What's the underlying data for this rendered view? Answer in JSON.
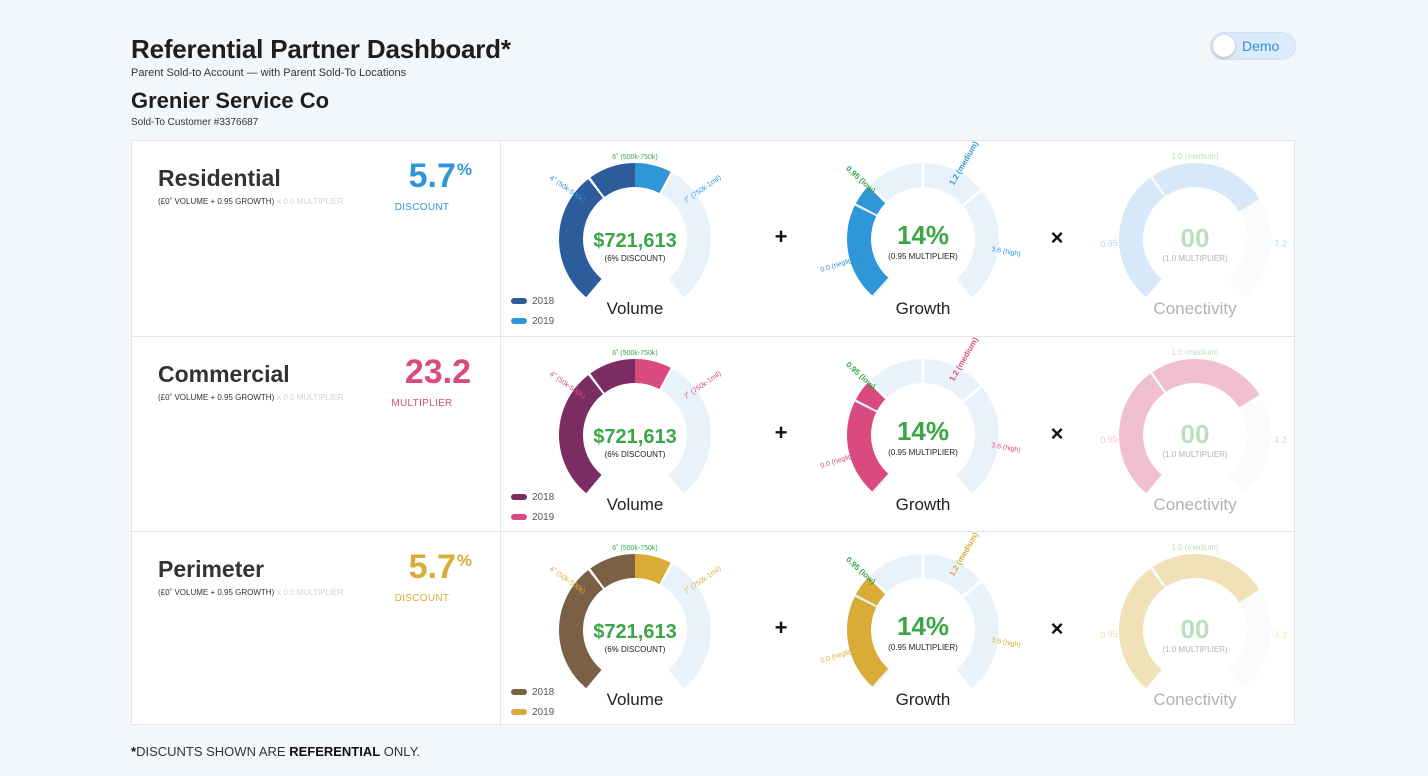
{
  "header": {
    "title": "Referential Partner Dashboard*",
    "subtitle": "Parent Sold-to Account — with Parent Sold-To Locations",
    "company": "Grenier Service Co",
    "customer": "Sold-To Customer #3376687"
  },
  "toggle": {
    "label": "Demo"
  },
  "segments": [
    {
      "name": "Residential",
      "formula": "(£0˚ VOLUME + 0.95 GROWTH)",
      "formula_faint": "x 0.0 MULTIPLIER",
      "big_value": "5.7",
      "big_suffix": "%",
      "big_caption": "DISCOUNT",
      "colors": {
        "primary": "#2f96d8",
        "dark": "#2c5c9c",
        "light": "#dfeefa",
        "accent": "#2f96d8"
      },
      "volume": {
        "value": "$721,613",
        "sub": "(6% DISCOUNT)",
        "label": "Volume",
        "tick_left": "4˚ (50k-500k)",
        "tick_top": "6˚ (500k-750k)",
        "tick_right": "7˚ (750k-1mil)",
        "legend": [
          "2018",
          "2019"
        ]
      },
      "growth": {
        "value": "14%",
        "sub": "(0.95 MULTIPLIER)",
        "label": "Growth",
        "tick_left": "0.0 (negligible)",
        "tick_lowmid": "0.95 (low)",
        "tick_high": "1.2 (medium)",
        "tick_right": "3.6 (high)"
      },
      "conectivity": {
        "value": "00",
        "sub": "(1.0 MULTIPLIER)",
        "label": "Conectivity",
        "tick_left": "0.95",
        "tick_top": "1.0 (medium)",
        "tick_right": "1.2"
      },
      "operators": {
        "plus": "+",
        "times": "×"
      }
    },
    {
      "name": "Commercial",
      "formula": "(£0˚ VOLUME + 0.95 GROWTH)",
      "formula_faint": "x 0.0 MULTIPLIER",
      "big_value": "23.2",
      "big_suffix": "",
      "big_caption": "MULTIPLIER",
      "colors": {
        "primary": "#d94b7f",
        "dark": "#7b2d63",
        "light": "#fbe0ea",
        "accent": "#d94b7f"
      },
      "volume": {
        "value": "$721,613",
        "sub": "(6% DISCOUNT)",
        "label": "Volume",
        "tick_left": "4˚ (50k-500k)",
        "tick_top": "6˚ (500k-750k)",
        "tick_right": "7˚ (750k-1mil)",
        "legend": [
          "2018",
          "2019"
        ]
      },
      "growth": {
        "value": "14%",
        "sub": "(0.95 MULTIPLIER)",
        "label": "Growth",
        "tick_left": "0.0 (negligible)",
        "tick_lowmid": "0.95 (low)",
        "tick_high": "1.2 (medium)",
        "tick_right": "3.6 (high)"
      },
      "conectivity": {
        "value": "00",
        "sub": "(1.0 MULTIPLIER)",
        "label": "Conectivity",
        "tick_left": "0.95",
        "tick_top": "1.0 (medium)",
        "tick_right": "1.2"
      },
      "operators": {
        "plus": "+",
        "times": "×"
      }
    },
    {
      "name": "Perimeter",
      "formula": "(£0˚ VOLUME + 0.95 GROWTH)",
      "formula_faint": "x 0.0 MULTIPLIER",
      "big_value": "5.7",
      "big_suffix": "%",
      "big_caption": "DISCOUNT",
      "colors": {
        "primary": "#d8ac37",
        "dark": "#7a6146",
        "light": "#f7ecd0",
        "accent": "#d8ac37"
      },
      "volume": {
        "value": "$721,613",
        "sub": "(6% DISCOUNT)",
        "label": "Volume",
        "tick_left": "4˚ (50k-500k)",
        "tick_top": "6˚ (500k-750k)",
        "tick_right": "7˚ (750k-1mil)",
        "legend": [
          "2018",
          "2019"
        ]
      },
      "growth": {
        "value": "14%",
        "sub": "(0.95 MULTIPLIER)",
        "label": "Growth",
        "tick_left": "0.0 (negligible)",
        "tick_lowmid": "0.95 (low)",
        "tick_high": "1.2 (medium)",
        "tick_right": "3.6 (high)"
      },
      "conectivity": {
        "value": "00",
        "sub": "(1.0 MULTIPLIER)",
        "label": "Conectivity",
        "tick_left": "0.95",
        "tick_top": "1.0 (medium)",
        "tick_right": "1.2"
      },
      "operators": {
        "plus": "+",
        "times": "×"
      }
    }
  ],
  "common": {
    "value_color": "#3aa646",
    "tick_green": "#3aa646"
  },
  "footnote": {
    "star": "*",
    "pre": "DISCUNTS SHOWN ARE ",
    "bold": "REFERENTIAL",
    "post": " ONLY."
  }
}
